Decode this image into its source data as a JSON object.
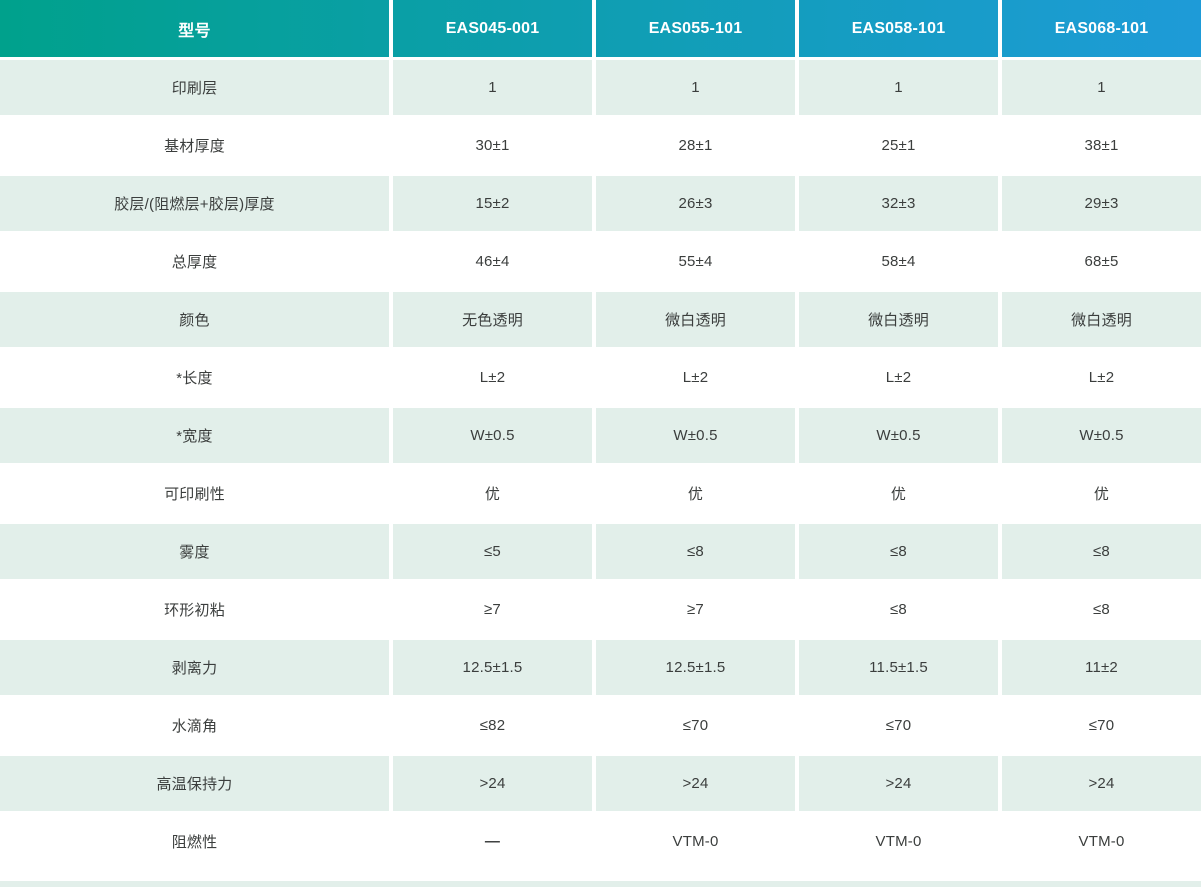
{
  "theme": {
    "header_gradient_start": "#00A18C",
    "header_gradient_end": "#1E9BD8",
    "header_text_color": "#FFFFFF",
    "row_alt_bg": "#E2EFEA",
    "row_bg": "#FFFFFF",
    "text_color": "#3B3E3D"
  },
  "table": {
    "header": [
      "型号",
      "EAS045-001",
      "EAS055-101",
      "EAS058-101",
      "EAS068-101"
    ],
    "rows": [
      {
        "label": "印刷层",
        "shaded": true,
        "values": [
          "1",
          "1",
          "1",
          "1"
        ]
      },
      {
        "label": "基材厚度",
        "shaded": false,
        "values": [
          "30±1",
          "28±1",
          "25±1",
          "38±1"
        ]
      },
      {
        "label": "胶层/(阻燃层+胶层)厚度",
        "shaded": true,
        "values": [
          "15±2",
          "26±3",
          "32±3",
          "29±3"
        ]
      },
      {
        "label": "总厚度",
        "shaded": false,
        "values": [
          "46±4",
          "55±4",
          "58±4",
          "68±5"
        ]
      },
      {
        "label": "颜色",
        "shaded": true,
        "values": [
          "无色透明",
          "微白透明",
          "微白透明",
          "微白透明"
        ]
      },
      {
        "label": "*长度",
        "shaded": false,
        "values": [
          "L±2",
          "L±2",
          "L±2",
          "L±2"
        ]
      },
      {
        "label": "*宽度",
        "shaded": true,
        "values": [
          "W±0.5",
          "W±0.5",
          "W±0.5",
          "W±0.5"
        ]
      },
      {
        "label": "可印刷性",
        "shaded": false,
        "values": [
          "优",
          "优",
          "优",
          "优"
        ]
      },
      {
        "label": "雾度",
        "shaded": true,
        "values": [
          "≤5",
          "≤8",
          "≤8",
          "≤8"
        ]
      },
      {
        "label": "环形初粘",
        "shaded": false,
        "values": [
          "≥7",
          "≥7",
          "≤8",
          "≤8"
        ]
      },
      {
        "label": "剥离力",
        "shaded": true,
        "values": [
          "12.5±1.5",
          "12.5±1.5",
          "11.5±1.5",
          "11±2"
        ]
      },
      {
        "label": "水滴角",
        "shaded": false,
        "values": [
          "≤82",
          "≤70",
          "≤70",
          "≤70"
        ]
      },
      {
        "label": "高温保持力",
        "shaded": true,
        "values": [
          ">24",
          ">24",
          ">24",
          ">24"
        ]
      },
      {
        "label": "阻燃性",
        "shaded": false,
        "values": [
          "—",
          "VTM-0",
          "VTM-0",
          "VTM-0"
        ]
      }
    ]
  }
}
